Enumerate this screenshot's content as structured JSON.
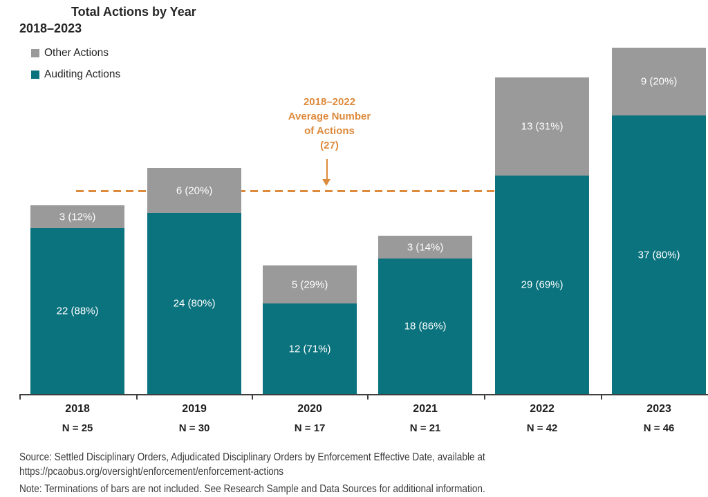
{
  "title": "Total Actions by Year",
  "subtitle": "2018–2023",
  "legend": [
    {
      "label": "Other Actions",
      "color": "#9a9a9a"
    },
    {
      "label": "Auditing Actions",
      "color": "#0a737e"
    }
  ],
  "annotation": {
    "text": "2018–2022\nAverage Number\nof Actions\n(27)",
    "color": "#de8a3c"
  },
  "chart_data": {
    "type": "bar",
    "stacked": true,
    "title": "Total Actions by Year",
    "subtitle": "2018–2023",
    "categories": [
      "2018",
      "2019",
      "2020",
      "2021",
      "2022",
      "2023"
    ],
    "category_sublabels": [
      "N = 25",
      "N = 30",
      "N = 17",
      "N = 21",
      "N = 42",
      "N = 46"
    ],
    "totals": [
      25,
      30,
      17,
      21,
      42,
      46
    ],
    "series": [
      {
        "name": "Auditing Actions",
        "color": "#0a737e",
        "values": [
          22,
          24,
          12,
          18,
          29,
          37
        ],
        "data_labels": [
          "22 (88%)",
          "24 (80%)",
          "12 (71%)",
          "18 (86%)",
          "29 (69%)",
          "37 (80%)"
        ]
      },
      {
        "name": "Other Actions",
        "color": "#9a9a9a",
        "values": [
          3,
          6,
          5,
          3,
          13,
          9
        ],
        "data_labels": [
          "3 (12%)",
          "6 (20%)",
          "5 (29%)",
          "3 (14%)",
          "13 (31%)",
          "9 (20%)"
        ]
      }
    ],
    "reference_line": {
      "value": 27,
      "label": "2018–2022 Average Number of Actions (27)",
      "color": "#de8a3c",
      "style": "dashed"
    },
    "ylim": [
      0,
      46
    ],
    "grid": false,
    "legend_position": "top-left"
  },
  "footer": {
    "source_line1": "Source: Settled Disciplinary Orders, Adjudicated Disciplinary Orders by Enforcement Effective Date, available at",
    "source_line2": "https://pcaobus.org/oversight/enforcement/enforcement-actions",
    "note": "Note: Terminations of bars are not included. See Research Sample and Data Sources for additional information."
  }
}
